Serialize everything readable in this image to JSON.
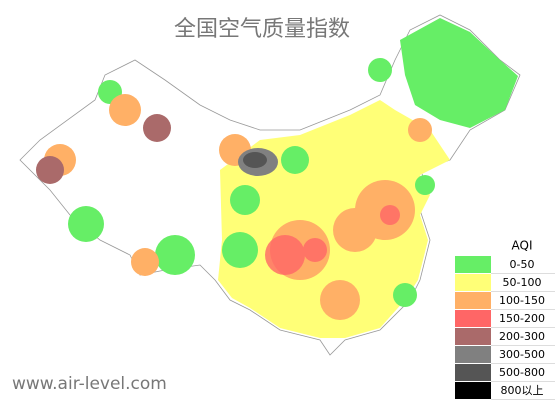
{
  "title": "全国空气质量指数",
  "legend": {
    "title": "AQI",
    "items": [
      {
        "label": "0-50",
        "color": "#66ee66"
      },
      {
        "label": "50-100",
        "color": "#ffff77"
      },
      {
        "label": "100-150",
        "color": "#ffb066"
      },
      {
        "label": "150-200",
        "color": "#ff6666"
      },
      {
        "label": "200-300",
        "color": "#aa6a6a"
      },
      {
        "label": "300-500",
        "color": "#808080"
      },
      {
        "label": "500-800",
        "color": "#555555"
      },
      {
        "label": "800以上",
        "color": "#000000"
      }
    ]
  },
  "watermark": "www.air-level.com"
}
